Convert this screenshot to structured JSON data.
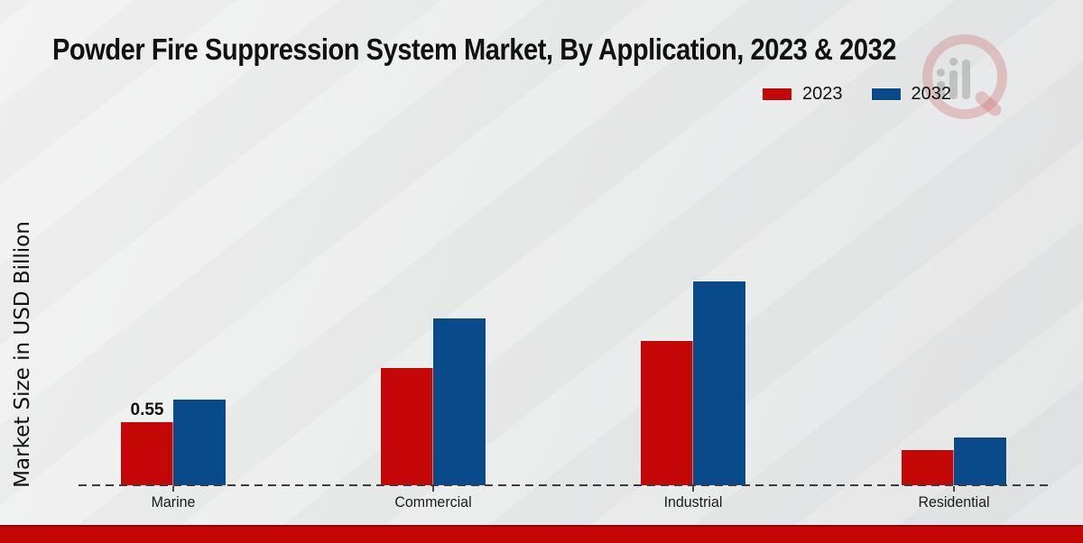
{
  "title": "Powder Fire Suppression System Market, By Application, 2023 & 2032",
  "ylabel": "Market Size in USD Billion",
  "legend": {
    "items": [
      {
        "label": "2023",
        "color": "#c40707"
      },
      {
        "label": "2032",
        "color": "#084a8a"
      }
    ]
  },
  "colors": {
    "series_2023": "#c40707",
    "series_2032": "#084a8a",
    "footer_band": "#c40606",
    "baseline": "#3c3c3c"
  },
  "chart_data": {
    "type": "bar",
    "title": "Powder Fire Suppression System Market, By Application, 2023 & 2032",
    "xlabel": "",
    "ylabel": "Market Size in USD Billion",
    "categories": [
      "Marine",
      "Commercial",
      "Industrial",
      "Residential"
    ],
    "series": [
      {
        "name": "2023",
        "color": "#c40707",
        "values": [
          0.55,
          1.02,
          1.26,
          0.31
        ]
      },
      {
        "name": "2032",
        "color": "#084a8a",
        "values": [
          0.75,
          1.46,
          1.78,
          0.42
        ]
      }
    ],
    "data_labels": [
      {
        "series": "2023",
        "category": "Marine",
        "text": "0.55"
      }
    ],
    "ylim": [
      0,
      2.2
    ],
    "grid": false,
    "axis_style": "dashed-baseline-only",
    "legend_position": "top-right"
  }
}
